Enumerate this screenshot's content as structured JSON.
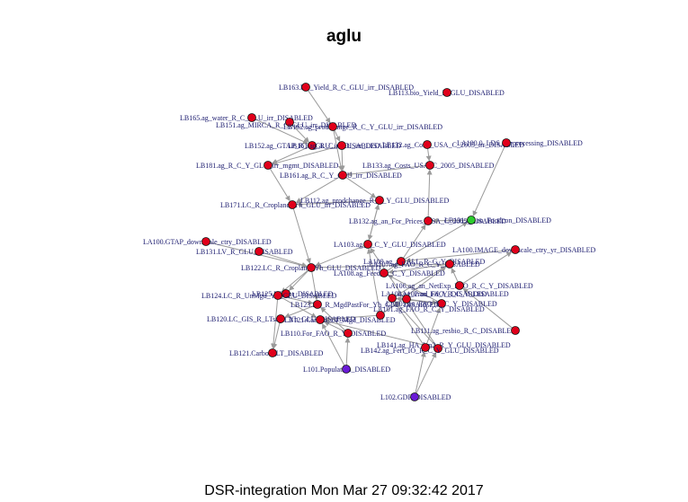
{
  "title": "aglu",
  "footer": "DSR-integration Mon Mar 27 09:32:42 2017",
  "colors": {
    "red": "#e0001b",
    "green": "#2ecc2e",
    "purple": "#6a1bd6",
    "edge": "#9a9a9a",
    "label": "#1a1a6e"
  },
  "nodes": [
    {
      "id": "LB163",
      "label": "LB163.bio_Yield_R_C_GLU_irr_DISABLED",
      "color": "red"
    },
    {
      "id": "LB113",
      "label": "LB113.bio_Yield_R_GLU_DISABLED",
      "color": "red"
    },
    {
      "id": "LB165",
      "label": "LB165.ag_water_R_C_GLU_irr_DISABLED",
      "color": "red"
    },
    {
      "id": "LB151",
      "label": "LB151.ag_MIRCA_R_C_GLU_irr_DISABLED",
      "color": "red"
    },
    {
      "id": "LB162",
      "label": "LB162.ag_prodchange_R_C_Y_GLU_irr_DISABLED",
      "color": "red"
    },
    {
      "id": "LB152",
      "label": "LB152.ag_GTAP_R_C_GLU_irr_DISABLED",
      "color": "red"
    },
    {
      "id": "LB161i",
      "label": "LB161.ag_R_C_GLU_irr_DISABLED",
      "color": "red"
    },
    {
      "id": "LB132c",
      "label": "LB132.ag_Costs_USA_C_2005_irr_DISABLED",
      "color": "red"
    },
    {
      "id": "LA100_0",
      "label": "LA100.0_LDS_preprocessing_DISABLED",
      "color": "red"
    },
    {
      "id": "LB181",
      "label": "LB181.ag_R_C_Y_GLU_irr_mgmt_DISABLED",
      "color": "red"
    },
    {
      "id": "LB133",
      "label": "LB133.ag_Costs_USA_C_2005_DISABLED",
      "color": "red"
    },
    {
      "id": "LB161y",
      "label": "LB161.ag_R_C_Y_GLU_irr_DISABLED",
      "color": "red"
    },
    {
      "id": "LB112",
      "label": "LB112.ag_prodchange_R_C_Y_GLU_DISABLED",
      "color": "red"
    },
    {
      "id": "LB171",
      "label": "LB171.LC_R_Cropland_Yh_GLU_irr_DISABLED",
      "color": "red"
    },
    {
      "id": "LB132p",
      "label": "LB132.ag_an_For_Prices_USA_C_2005_DISABLED",
      "color": "red"
    },
    {
      "id": "LB131g",
      "label": "LB131.ag_an_Foodcon_DISABLED",
      "color": "green"
    },
    {
      "id": "LA100G",
      "label": "LA100.GTAP_downscale_ctry_DISABLED",
      "color": "red"
    },
    {
      "id": "LA103",
      "label": "LA103.ag_R_C_Y_GLU_DISABLED",
      "color": "red"
    },
    {
      "id": "LA100I",
      "label": "LA100.IMAGE_downscale_ctry_yr_DISABLED",
      "color": "red"
    },
    {
      "id": "LB131lv",
      "label": "LB131.LV_R_GLU_DISABLED",
      "color": "red"
    },
    {
      "id": "LA109",
      "label": "LA109.ag_an_ALL_R_C_Y_DISABLED",
      "color": "red"
    },
    {
      "id": "LB122",
      "label": "LB122.LC_R_Cropland_Yh_GLU_DISABLED",
      "color": "red"
    },
    {
      "id": "LA108",
      "label": "LA108.ag_Feed_R_C_Y_DISABLED",
      "color": "red"
    },
    {
      "id": "LA107",
      "label": "LA107.ag_FAO_R_C_Y_DISABLED",
      "color": "red"
    },
    {
      "id": "LA105",
      "label": "LA105.an_FAO_R_C_Y_DISABLED",
      "color": "red"
    },
    {
      "id": "LA106",
      "label": "LA106.ag_an_NetExp_FAO_R_C_Y_DISABLED",
      "color": "red"
    },
    {
      "id": "LA104",
      "label": "LA104.ag_Prod_Fd_Y_DISABLED",
      "color": "red"
    },
    {
      "id": "LB125",
      "label": "LB125.LC_tot_DISABLED",
      "color": "red"
    },
    {
      "id": "LB124",
      "label": "LB124.LC_R_UnMgd_Yh_GLU_DISABLED",
      "color": "red"
    },
    {
      "id": "LB123",
      "label": "LB123.LC_R_MgdPastFor_Yh_GLU_DISABLED",
      "color": "red"
    },
    {
      "id": "LA102",
      "label": "LA102.an_FAO_R_C_Y_DISABLED",
      "color": "red"
    },
    {
      "id": "LB120",
      "label": "LB120.LC_GIS_R_LTsage_Yh_GLU_DISABLED",
      "color": "red"
    },
    {
      "id": "LB1211",
      "label": "LB121.Carbon_LT_Mgd_DISABLED",
      "color": "red"
    },
    {
      "id": "LA101",
      "label": "LA101.ag_FAO_R_C_Y_DISABLED",
      "color": "red"
    },
    {
      "id": "LB110",
      "label": "LB110.For_FAO_R_Y_DISABLED",
      "color": "red"
    },
    {
      "id": "LB111",
      "label": "LB111.ag_resbio_R_C_DISABLED",
      "color": "red"
    },
    {
      "id": "LB141",
      "label": "LB141.ag_HA_bm2_R_Y_GLU_DISABLED",
      "color": "red"
    },
    {
      "id": "LB142",
      "label": "LB142.ag_Fert_IO_R_C_Y_GLU_DISABLED",
      "color": "red"
    },
    {
      "id": "LB121",
      "label": "LB121.Carbon_LT_DISABLED",
      "color": "red"
    },
    {
      "id": "L101",
      "label": "L101.Population_DISABLED",
      "color": "purple"
    },
    {
      "id": "L102",
      "label": "L102.GDP_DISABLED",
      "color": "purple"
    }
  ],
  "edges": [
    [
      "LB163",
      "LB162"
    ],
    [
      "LB165",
      "LB152"
    ],
    [
      "LB151",
      "LB152"
    ],
    [
      "LB162",
      "LB161i"
    ],
    [
      "LB152",
      "LB181"
    ],
    [
      "LB161i",
      "LB181"
    ],
    [
      "LB161i",
      "LB161y"
    ],
    [
      "LB162",
      "LB161y"
    ],
    [
      "LB132c",
      "LB133"
    ],
    [
      "LB133",
      "LB161y"
    ],
    [
      "LB181",
      "LB171"
    ],
    [
      "LB161y",
      "LB171"
    ],
    [
      "LB161y",
      "LB112"
    ],
    [
      "LB112",
      "LB171"
    ],
    [
      "LB171",
      "LB122"
    ],
    [
      "LB112",
      "LA103"
    ],
    [
      "LB132p",
      "LB133"
    ],
    [
      "LB131g",
      "LB132p"
    ],
    [
      "LA100_0",
      "LB131g"
    ],
    [
      "LA103",
      "LB122"
    ],
    [
      "LA103",
      "LB112"
    ],
    [
      "LA109",
      "LB131g"
    ],
    [
      "LA109",
      "LB132p"
    ],
    [
      "LA100I",
      "LA109"
    ],
    [
      "LA100G",
      "LB122"
    ],
    [
      "LB131lv",
      "LB122"
    ],
    [
      "LB122",
      "LB125"
    ],
    [
      "LB122",
      "LB124"
    ],
    [
      "LB125",
      "LB124"
    ],
    [
      "LB124",
      "LB123"
    ],
    [
      "LB123",
      "LB120"
    ],
    [
      "LB120",
      "LB121"
    ],
    [
      "LB124",
      "LB121"
    ],
    [
      "LB122",
      "LB123"
    ],
    [
      "LA108",
      "LA109"
    ],
    [
      "LA107",
      "LA108"
    ],
    [
      "LA104",
      "LA107"
    ],
    [
      "LA105",
      "LA108"
    ],
    [
      "LA106",
      "LA107"
    ],
    [
      "LA102",
      "LA105"
    ],
    [
      "LA101",
      "LA103"
    ],
    [
      "LA101",
      "LB1211"
    ],
    [
      "LB110",
      "LB123"
    ],
    [
      "LB111",
      "LA106"
    ],
    [
      "LB141",
      "LA104"
    ],
    [
      "LB142",
      "LA104"
    ],
    [
      "LB141",
      "LA103"
    ],
    [
      "LB110",
      "LB1211"
    ],
    [
      "L101",
      "LB110"
    ],
    [
      "L101",
      "LB1211"
    ],
    [
      "L102",
      "LB141"
    ],
    [
      "L102",
      "LB142"
    ],
    [
      "LA106",
      "LA100I"
    ],
    [
      "LA102",
      "LA104"
    ],
    [
      "LA101",
      "LA107"
    ],
    [
      "LB142",
      "LA105"
    ],
    [
      "LA105",
      "LA104"
    ],
    [
      "LA107",
      "LB122"
    ],
    [
      "LB124",
      "LB1211"
    ],
    [
      "LB141",
      "LB1211"
    ]
  ]
}
